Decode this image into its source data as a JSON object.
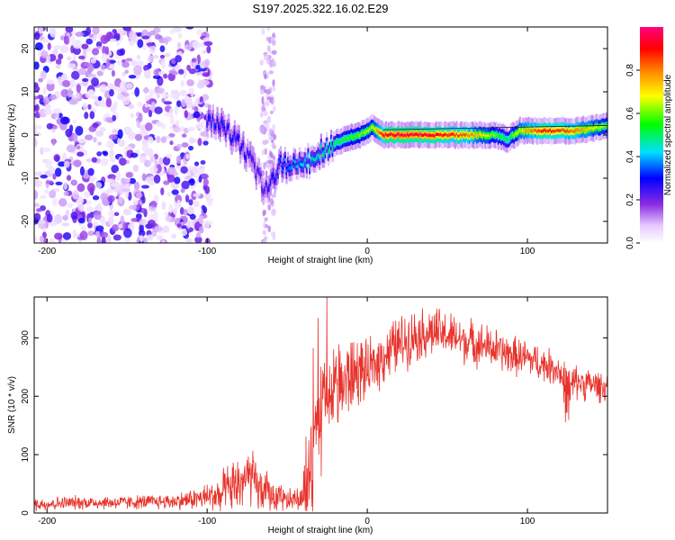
{
  "title": "S197.2025.322.16.02.E29",
  "chart_data": [
    {
      "type": "heatmap",
      "name": "spectrogram",
      "xlabel": "Height of straight line (km)",
      "ylabel": "Frequency (Hz)",
      "xlim": [
        -208,
        150
      ],
      "ylim": [
        -25,
        25
      ],
      "xticks": [
        -200,
        -100,
        0,
        100
      ],
      "xtick_labels": [
        "-200",
        "-100",
        "0",
        "100"
      ],
      "yticks": [
        -20,
        -10,
        0,
        10,
        20
      ],
      "ytick_labels": [
        "-20",
        "-10",
        "0",
        "10",
        "20"
      ],
      "colorbar": {
        "label": "Normalized spectral amplitude",
        "range": [
          0,
          1
        ],
        "ticks": [
          0.0,
          0.2,
          0.4,
          0.6,
          0.8
        ],
        "tick_labels": [
          "0.0",
          "0.2",
          "0.4",
          "0.6",
          "0.8"
        ],
        "colors": [
          "#ffffff",
          "#8a2be2",
          "#0000ff",
          "#00e0ff",
          "#00ff00",
          "#ffff00",
          "#ff8000",
          "#ff0000",
          "#ff0080"
        ]
      },
      "noise_region_km": [
        -208,
        -98
      ],
      "ridge": {
        "x": [
          -100,
          -90,
          -80,
          -72,
          -65,
          -60,
          -55,
          -45,
          -35,
          -25,
          -15,
          -5,
          0,
          3,
          10,
          20,
          40,
          60,
          80,
          88,
          95,
          110,
          130,
          150
        ],
        "y": [
          4,
          2,
          -2,
          -6,
          -12,
          -11,
          -7,
          -7,
          -6,
          -3,
          -1,
          0,
          1,
          2,
          0,
          0,
          0,
          0,
          0,
          -1,
          1,
          1,
          1,
          2
        ],
        "intensity": [
          0.3,
          0.3,
          0.3,
          0.25,
          0.25,
          0.3,
          0.35,
          0.4,
          0.45,
          0.5,
          0.55,
          0.6,
          0.62,
          0.65,
          0.9,
          0.95,
          0.92,
          0.85,
          0.6,
          0.5,
          0.7,
          0.9,
          0.8,
          0.6
        ]
      }
    },
    {
      "type": "line",
      "name": "snr",
      "xlabel": "Height of straight line (km)",
      "ylabel": "SNR (10 * v/v)",
      "xlim": [
        -208,
        150
      ],
      "ylim": [
        0,
        370
      ],
      "xticks": [
        -200,
        -100,
        0,
        100
      ],
      "xtick_labels": [
        "-200",
        "-100",
        "0",
        "100"
      ],
      "yticks": [
        0,
        100,
        200,
        300
      ],
      "ytick_labels": [
        "0",
        "100",
        "200",
        "300"
      ],
      "color": "#e8322b",
      "series": [
        {
          "name": "SNR",
          "x": [
            -208,
            -180,
            -150,
            -120,
            -105,
            -95,
            -85,
            -78,
            -72,
            -68,
            -62,
            -55,
            -50,
            -45,
            -40,
            -35,
            -30,
            -25,
            -20,
            -15,
            -10,
            -5,
            0,
            10,
            20,
            30,
            40,
            50,
            60,
            70,
            80,
            90,
            100,
            110,
            120,
            125,
            130,
            140,
            150
          ],
          "y": [
            15,
            18,
            18,
            20,
            25,
            30,
            40,
            55,
            60,
            40,
            35,
            25,
            20,
            25,
            20,
            70,
            170,
            190,
            210,
            220,
            235,
            245,
            240,
            270,
            290,
            305,
            310,
            305,
            295,
            290,
            280,
            270,
            265,
            255,
            245,
            200,
            225,
            220,
            215
          ],
          "noise_amplitude": [
            12,
            12,
            12,
            14,
            20,
            30,
            45,
            55,
            50,
            40,
            35,
            25,
            20,
            20,
            20,
            90,
            120,
            100,
            90,
            80,
            70,
            60,
            50,
            50,
            50,
            45,
            45,
            40,
            40,
            38,
            36,
            34,
            32,
            30,
            30,
            60,
            30,
            28,
            26
          ]
        }
      ]
    }
  ]
}
